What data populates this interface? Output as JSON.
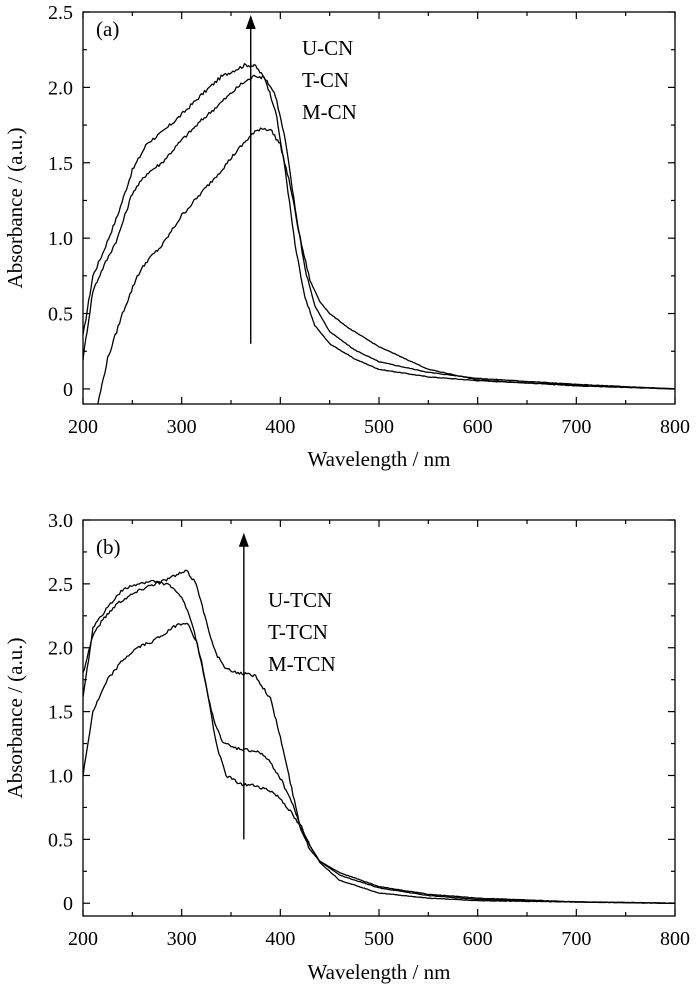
{
  "chart_data": [
    {
      "type": "line",
      "panel_label": "(a)",
      "xlabel": "Wavelength / nm",
      "ylabel": "Absorbance / (a.u.)",
      "xlim": [
        200,
        800
      ],
      "ylim": [
        -0.1,
        2.5
      ],
      "xticks": [
        200,
        300,
        400,
        500,
        600,
        700,
        800
      ],
      "yticks": [
        0,
        0.5,
        1.0,
        1.5,
        2.0,
        2.5
      ],
      "ytick_labels": [
        "0",
        "0.5",
        "1.0",
        "1.5",
        "2.0",
        "2.5"
      ],
      "legend": [
        "U-CN",
        "T-CN",
        "M-CN"
      ],
      "arrow": {
        "x": 370,
        "y_from": 0.3,
        "y_to": 2.48
      },
      "series": [
        {
          "name": "U-CN",
          "x": [
            200,
            210,
            220,
            235,
            250,
            265,
            280,
            300,
            320,
            340,
            355,
            365,
            375,
            385,
            395,
            405,
            415,
            425,
            435,
            450,
            475,
            500,
            550,
            600,
            700,
            800
          ],
          "y": [
            0.35,
            0.75,
            0.9,
            1.15,
            1.45,
            1.63,
            1.7,
            1.82,
            1.95,
            2.07,
            2.12,
            2.15,
            2.14,
            2.05,
            1.85,
            1.45,
            0.95,
            0.6,
            0.42,
            0.3,
            0.2,
            0.13,
            0.08,
            0.055,
            0.025,
            0.0
          ]
        },
        {
          "name": "T-CN",
          "x": [
            200,
            210,
            220,
            235,
            250,
            265,
            280,
            300,
            320,
            340,
            360,
            375,
            385,
            395,
            405,
            415,
            425,
            435,
            450,
            475,
            500,
            550,
            600,
            700,
            800
          ],
          "y": [
            0.2,
            0.65,
            0.8,
            1.0,
            1.3,
            1.43,
            1.5,
            1.65,
            1.78,
            1.9,
            2.02,
            2.08,
            2.06,
            1.95,
            1.65,
            1.2,
            0.8,
            0.55,
            0.38,
            0.26,
            0.18,
            0.11,
            0.07,
            0.03,
            0.0
          ]
        },
        {
          "name": "M-CN",
          "x": [
            215,
            225,
            240,
            255,
            265,
            280,
            300,
            320,
            340,
            355,
            370,
            380,
            390,
            400,
            410,
            420,
            430,
            440,
            450,
            470,
            500,
            550,
            600,
            700,
            800
          ],
          "y": [
            -0.1,
            0.2,
            0.5,
            0.75,
            0.85,
            0.95,
            1.15,
            1.3,
            1.45,
            1.57,
            1.68,
            1.73,
            1.72,
            1.62,
            1.35,
            1.0,
            0.72,
            0.58,
            0.5,
            0.4,
            0.28,
            0.13,
            0.06,
            0.02,
            0.0
          ]
        }
      ]
    },
    {
      "type": "line",
      "panel_label": "(b)",
      "xlabel": "Wavelength / nm",
      "ylabel": "Absorbance / (a.u.)",
      "xlim": [
        200,
        800
      ],
      "ylim": [
        -0.1,
        3.0
      ],
      "xticks": [
        200,
        300,
        400,
        500,
        600,
        700,
        800
      ],
      "yticks": [
        0,
        0.5,
        1.0,
        1.5,
        2.0,
        2.5,
        3.0
      ],
      "ytick_labels": [
        "0",
        "0.5",
        "1.0",
        "1.5",
        "2.0",
        "2.5",
        "3.0"
      ],
      "legend": [
        "U-TCN",
        "T-TCN",
        "M-TCN"
      ],
      "arrow": {
        "x": 363,
        "y_from": 0.5,
        "y_to": 2.9
      },
      "series": [
        {
          "name": "U-TCN",
          "x": [
            200,
            210,
            220,
            235,
            250,
            265,
            280,
            295,
            305,
            315,
            325,
            335,
            345,
            360,
            375,
            390,
            400,
            410,
            420,
            430,
            440,
            460,
            500,
            550,
            600,
            700,
            800
          ],
          "y": [
            1.8,
            2.1,
            2.22,
            2.35,
            2.42,
            2.48,
            2.52,
            2.57,
            2.6,
            2.5,
            2.2,
            1.95,
            1.83,
            1.8,
            1.78,
            1.6,
            1.3,
            0.95,
            0.6,
            0.42,
            0.33,
            0.24,
            0.13,
            0.07,
            0.04,
            0.01,
            0.0
          ]
        },
        {
          "name": "T-TCN",
          "x": [
            200,
            210,
            225,
            240,
            255,
            270,
            285,
            300,
            310,
            320,
            330,
            340,
            350,
            365,
            380,
            390,
            400,
            410,
            420,
            430,
            440,
            460,
            500,
            550,
            600,
            700,
            800
          ],
          "y": [
            1.6,
            2.15,
            2.32,
            2.45,
            2.5,
            2.52,
            2.5,
            2.4,
            2.2,
            1.9,
            1.5,
            1.28,
            1.22,
            1.2,
            1.18,
            1.1,
            0.98,
            0.82,
            0.62,
            0.45,
            0.33,
            0.22,
            0.12,
            0.06,
            0.03,
            0.01,
            0.0
          ]
        },
        {
          "name": "M-TCN",
          "x": [
            200,
            210,
            225,
            240,
            255,
            270,
            285,
            295,
            305,
            315,
            325,
            335,
            345,
            360,
            375,
            390,
            400,
            410,
            420,
            430,
            440,
            460,
            500,
            550,
            600,
            700,
            800
          ],
          "y": [
            1.0,
            1.5,
            1.75,
            1.9,
            2.0,
            2.05,
            2.12,
            2.18,
            2.2,
            2.05,
            1.7,
            1.25,
            1.0,
            0.93,
            0.92,
            0.88,
            0.82,
            0.72,
            0.6,
            0.45,
            0.32,
            0.18,
            0.08,
            0.04,
            0.02,
            0.01,
            0.0
          ]
        }
      ]
    }
  ]
}
